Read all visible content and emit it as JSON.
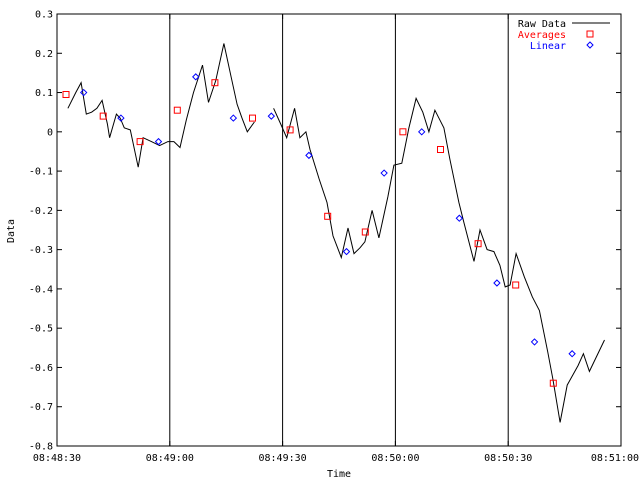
{
  "chart_data": {
    "type": "line",
    "title": "",
    "xlabel": "Time",
    "ylabel": "Data",
    "ylim": [
      -0.8,
      0.3
    ],
    "xlim": [
      0,
      150
    ],
    "x_unit": "seconds since 08:48:30",
    "yticks": [
      -0.8,
      -0.7,
      -0.6,
      -0.5,
      -0.4,
      -0.3,
      -0.2,
      -0.1,
      0,
      0.1,
      0.2,
      0.3
    ],
    "ytick_labels": [
      "-0.8",
      "-0.7",
      "-0.6",
      "-0.5",
      "-0.4",
      "-0.3",
      "-0.2",
      "-0.1",
      "0",
      "0.1",
      "0.2",
      "0.3"
    ],
    "xticks": [
      0,
      30,
      60,
      90,
      120,
      150
    ],
    "xtick_labels": [
      "08:48:30",
      "08:49:00",
      "08:49:30",
      "08:50:00",
      "08:50:30",
      "08:51:00"
    ],
    "vlines": [
      30,
      60,
      90,
      120
    ],
    "legend": {
      "placement": "top-right",
      "entries": [
        "Raw Data",
        "Averages",
        "Linear"
      ]
    },
    "series": [
      {
        "name": "Raw Data",
        "color": "#000000",
        "marker": "line",
        "segments": [
          [
            [
              2.9,
              0.06
            ],
            [
              5,
              0.1
            ],
            [
              6.4,
              0.125
            ],
            [
              7.8,
              0.045
            ],
            [
              9.2,
              0.05
            ],
            [
              10.6,
              0.06
            ],
            [
              12,
              0.08
            ],
            [
              13.4,
              0.02
            ],
            [
              14,
              -0.015
            ],
            [
              15.8,
              0.045
            ],
            [
              16.8,
              0.035
            ],
            [
              17.9,
              0.01
            ],
            [
              19.5,
              0.005
            ],
            [
              21.6,
              -0.09
            ],
            [
              22.9,
              -0.015
            ],
            [
              25.1,
              -0.025
            ],
            [
              27.3,
              -0.035
            ],
            [
              29.5,
              -0.025
            ],
            [
              31.1,
              -0.025
            ],
            [
              32.7,
              -0.04
            ],
            [
              34.4,
              0.03
            ],
            [
              36.3,
              0.1
            ],
            [
              38.7,
              0.17
            ],
            [
              40.3,
              0.075
            ],
            [
              42.2,
              0.13
            ],
            [
              44.4,
              0.225
            ],
            [
              46.3,
              0.14
            ],
            [
              47.9,
              0.07
            ],
            [
              49.2,
              0.035
            ],
            [
              50.6,
              0
            ],
            [
              52.5,
              0.025
            ]
          ],
          [
            [
              57.6,
              0.06
            ],
            [
              59.5,
              0.02
            ],
            [
              61.1,
              -0.015
            ],
            [
              63.2,
              0.06
            ],
            [
              64.6,
              -0.015
            ],
            [
              66.2,
              0
            ],
            [
              67.3,
              -0.045
            ],
            [
              69.7,
              -0.12
            ],
            [
              71.8,
              -0.18
            ],
            [
              73.4,
              -0.265
            ],
            [
              75.6,
              -0.32
            ],
            [
              77.4,
              -0.245
            ],
            [
              79,
              -0.31
            ],
            [
              80.6,
              -0.295
            ],
            [
              81.9,
              -0.28
            ],
            [
              83.8,
              -0.2
            ],
            [
              85.6,
              -0.27
            ],
            [
              88,
              -0.165
            ],
            [
              89.6,
              -0.085
            ],
            [
              91.7,
              -0.08
            ],
            [
              93.6,
              0.01
            ],
            [
              95.5,
              0.085
            ],
            [
              97.3,
              0.05
            ],
            [
              98.9,
              0
            ],
            [
              100.5,
              0.055
            ],
            [
              102.9,
              0.01
            ],
            [
              104.5,
              -0.07
            ],
            [
              106.9,
              -0.18
            ],
            [
              108.2,
              -0.23
            ],
            [
              110.9,
              -0.33
            ],
            [
              112.5,
              -0.25
            ],
            [
              114.4,
              -0.3
            ],
            [
              116.2,
              -0.305
            ],
            [
              117.8,
              -0.34
            ],
            [
              119.2,
              -0.395
            ],
            [
              120.5,
              -0.39
            ],
            [
              122.1,
              -0.31
            ],
            [
              124.3,
              -0.37
            ],
            [
              126.4,
              -0.42
            ],
            [
              128.3,
              -0.455
            ],
            [
              130.5,
              -0.56
            ],
            [
              131.9,
              -0.63
            ],
            [
              133.8,
              -0.74
            ],
            [
              135.7,
              -0.645
            ],
            [
              138.6,
              -0.595
            ],
            [
              140,
              -0.565
            ],
            [
              141.6,
              -0.61
            ],
            [
              145.6,
              -0.53
            ]
          ]
        ]
      },
      {
        "name": "Averages",
        "color": "#ff0000",
        "marker": "square",
        "points": [
          [
            2.4,
            0.095
          ],
          [
            12.3,
            0.04
          ],
          [
            22.1,
            -0.025
          ],
          [
            32,
            0.055
          ],
          [
            42,
            0.125
          ],
          [
            52,
            0.035
          ],
          [
            62,
            0.005
          ],
          [
            72,
            -0.215
          ],
          [
            82,
            -0.255
          ],
          [
            92,
            0
          ],
          [
            102,
            -0.045
          ],
          [
            112,
            -0.285
          ],
          [
            122,
            -0.39
          ],
          [
            132,
            -0.64
          ]
        ]
      },
      {
        "name": "Linear",
        "color": "#0000ff",
        "marker": "diamond",
        "points": [
          [
            7.1,
            0.1
          ],
          [
            17,
            0.035
          ],
          [
            27,
            -0.025
          ],
          [
            36.9,
            0.14
          ],
          [
            46.9,
            0.035
          ],
          [
            57,
            0.04
          ],
          [
            67,
            -0.06
          ],
          [
            77,
            -0.305
          ],
          [
            87,
            -0.105
          ],
          [
            97,
            0
          ],
          [
            107,
            -0.22
          ],
          [
            117,
            -0.385
          ],
          [
            127,
            -0.535
          ],
          [
            137,
            -0.565
          ]
        ]
      }
    ]
  },
  "colors": {
    "raw": "#000000",
    "averages": "#ff0000",
    "linear": "#0000ff",
    "background": "#ffffff"
  }
}
